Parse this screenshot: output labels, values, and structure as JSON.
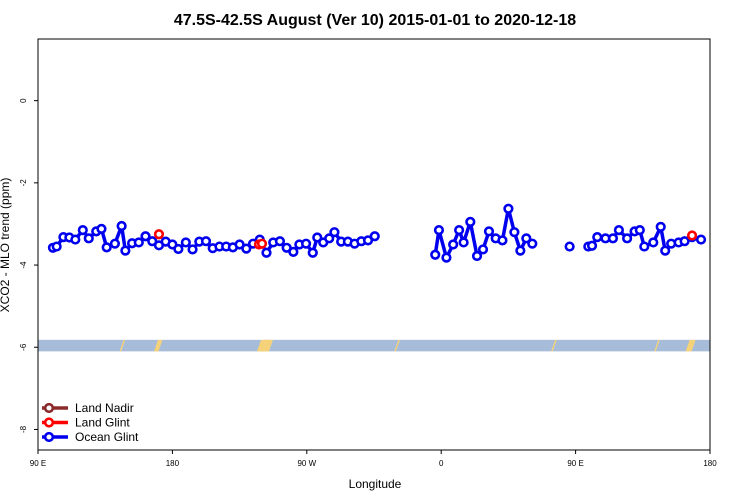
{
  "chart_data": {
    "type": "line",
    "title": "47.5S-42.5S August (Ver 10)   2015-01-01 to 2020-12-18",
    "xlabel": "Longitude",
    "ylabel": "XCO2 - MLO trend (ppm)",
    "xlim": [
      -90,
      360
    ],
    "ylim": [
      -8.5,
      1.5
    ],
    "x_ticks": [
      {
        "value": -90,
        "label": "90 E"
      },
      {
        "value": 0,
        "label": "180"
      },
      {
        "value": 90,
        "label": "90 W"
      },
      {
        "value": 180,
        "label": "0"
      },
      {
        "value": 270,
        "label": "90 E"
      },
      {
        "value": 360,
        "label": "180"
      }
    ],
    "y_ticks": [
      {
        "value": 0,
        "label": "0"
      },
      {
        "value": -2,
        "label": "-2"
      },
      {
        "value": -4,
        "label": "-4"
      },
      {
        "value": -6,
        "label": "-6"
      },
      {
        "value": -8,
        "label": "-8"
      }
    ],
    "grid": false,
    "legend_position": "bottom-left",
    "land_band": {
      "y_range": [
        -6.1,
        -5.82
      ],
      "ocean_color": "#a7bcd9",
      "land_color": "#f5d27a",
      "land_segments": [
        [
          -34,
          -33
        ],
        [
          -11,
          -8
        ],
        [
          58,
          64
        ],
        [
          60,
          66
        ],
        [
          150,
          151
        ],
        [
          255,
          256
        ],
        [
          324,
          325
        ],
        [
          345,
          349
        ]
      ]
    },
    "series": [
      {
        "name": "Land Nadir",
        "color": "#8b2a2a",
        "points": []
      },
      {
        "name": "Land Glint",
        "color": "#ff0000",
        "points": [
          {
            "x": -9,
            "y": -3.25
          },
          {
            "x": 58,
            "y": -3.5
          },
          {
            "x": 60,
            "y": -3.48
          },
          {
            "x": 348,
            "y": -3.28
          }
        ]
      },
      {
        "name": "Ocean Glint",
        "color": "#0000ee",
        "segments": [
          [
            {
              "x": -80,
              "y": -3.58
            },
            {
              "x": -77.5,
              "y": -3.55
            },
            {
              "x": -73,
              "y": -3.32
            },
            {
              "x": -69,
              "y": -3.33
            },
            {
              "x": -65,
              "y": -3.38
            },
            {
              "x": -60,
              "y": -3.15
            },
            {
              "x": -56,
              "y": -3.35
            },
            {
              "x": -51,
              "y": -3.18
            },
            {
              "x": -47.5,
              "y": -3.12
            },
            {
              "x": -44,
              "y": -3.57
            },
            {
              "x": -38.5,
              "y": -3.48
            },
            {
              "x": -34,
              "y": -3.05
            },
            {
              "x": -31.5,
              "y": -3.65
            },
            {
              "x": -27,
              "y": -3.47
            },
            {
              "x": -22.5,
              "y": -3.45
            },
            {
              "x": -18,
              "y": -3.3
            },
            {
              "x": -13.5,
              "y": -3.42
            },
            {
              "x": -9,
              "y": -3.52
            },
            {
              "x": -4.5,
              "y": -3.43
            },
            {
              "x": 0,
              "y": -3.5
            },
            {
              "x": 4,
              "y": -3.61
            },
            {
              "x": 9,
              "y": -3.45
            },
            {
              "x": 13.5,
              "y": -3.62
            },
            {
              "x": 18,
              "y": -3.43
            },
            {
              "x": 22.5,
              "y": -3.42
            },
            {
              "x": 27,
              "y": -3.59
            },
            {
              "x": 31.5,
              "y": -3.55
            },
            {
              "x": 36,
              "y": -3.55
            },
            {
              "x": 40.5,
              "y": -3.57
            },
            {
              "x": 45,
              "y": -3.5
            },
            {
              "x": 49.5,
              "y": -3.6
            },
            {
              "x": 54,
              "y": -3.48
            },
            {
              "x": 58.5,
              "y": -3.38
            },
            {
              "x": 63,
              "y": -3.7
            },
            {
              "x": 67.5,
              "y": -3.45
            },
            {
              "x": 72,
              "y": -3.42
            },
            {
              "x": 76.5,
              "y": -3.58
            },
            {
              "x": 81,
              "y": -3.68
            },
            {
              "x": 85,
              "y": -3.5
            },
            {
              "x": 89.5,
              "y": -3.48
            },
            {
              "x": 94,
              "y": -3.7
            },
            {
              "x": 97,
              "y": -3.33
            },
            {
              "x": 101,
              "y": -3.45
            },
            {
              "x": 105,
              "y": -3.35
            },
            {
              "x": 108.5,
              "y": -3.2
            },
            {
              "x": 113,
              "y": -3.43
            },
            {
              "x": 117.5,
              "y": -3.43
            },
            {
              "x": 122,
              "y": -3.48
            },
            {
              "x": 126.5,
              "y": -3.42
            },
            {
              "x": 131,
              "y": -3.4
            },
            {
              "x": 135.5,
              "y": -3.3
            }
          ],
          [
            {
              "x": 176,
              "y": -3.75
            },
            {
              "x": 178.5,
              "y": -3.15
            },
            {
              "x": 183.5,
              "y": -3.82
            },
            {
              "x": 188,
              "y": -3.5
            },
            {
              "x": 192,
              "y": -3.15
            },
            {
              "x": 195,
              "y": -3.45
            },
            {
              "x": 199.5,
              "y": -2.95
            },
            {
              "x": 204,
              "y": -3.78
            },
            {
              "x": 208,
              "y": -3.62
            },
            {
              "x": 212,
              "y": -3.18
            },
            {
              "x": 216.5,
              "y": -3.35
            },
            {
              "x": 221,
              "y": -3.4
            },
            {
              "x": 225,
              "y": -2.63
            },
            {
              "x": 229,
              "y": -3.2
            },
            {
              "x": 233,
              "y": -3.65
            },
            {
              "x": 237,
              "y": -3.35
            },
            {
              "x": 241,
              "y": -3.48
            }
          ],
          [
            {
              "x": 266,
              "y": -3.55
            }
          ],
          [
            {
              "x": 278.5,
              "y": -3.55
            },
            {
              "x": 281,
              "y": -3.53
            },
            {
              "x": 284.5,
              "y": -3.32
            },
            {
              "x": 290,
              "y": -3.35
            },
            {
              "x": 295,
              "y": -3.35
            },
            {
              "x": 299,
              "y": -3.15
            },
            {
              "x": 304.5,
              "y": -3.35
            },
            {
              "x": 309.5,
              "y": -3.18
            },
            {
              "x": 313,
              "y": -3.15
            },
            {
              "x": 316,
              "y": -3.55
            },
            {
              "x": 322,
              "y": -3.45
            },
            {
              "x": 327,
              "y": -3.07
            },
            {
              "x": 330,
              "y": -3.65
            },
            {
              "x": 334,
              "y": -3.48
            },
            {
              "x": 339,
              "y": -3.45
            },
            {
              "x": 343,
              "y": -3.42
            },
            {
              "x": 348,
              "y": -3.32
            },
            {
              "x": 354,
              "y": -3.38
            }
          ]
        ]
      }
    ]
  }
}
